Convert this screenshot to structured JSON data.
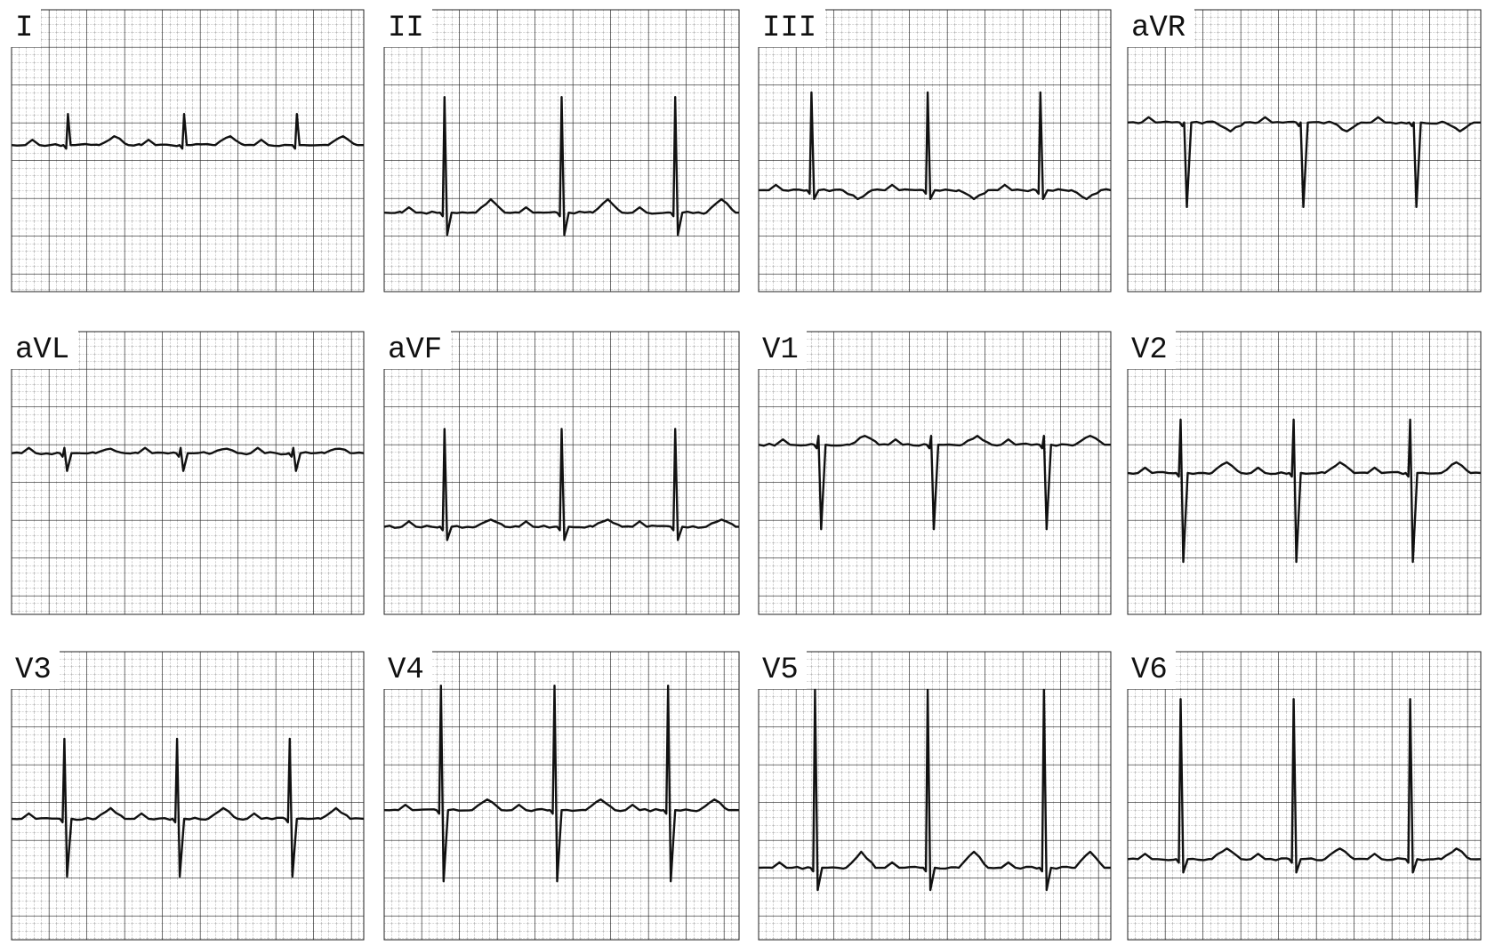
{
  "leads": [
    {
      "label": "I"
    },
    {
      "label": "II"
    },
    {
      "label": "III"
    },
    {
      "label": "aVR"
    },
    {
      "label": "aVL"
    },
    {
      "label": "aVF"
    },
    {
      "label": "V1"
    },
    {
      "label": "V2"
    },
    {
      "label": "V3"
    },
    {
      "label": "V4"
    },
    {
      "label": "V5"
    },
    {
      "label": "V6"
    }
  ]
}
